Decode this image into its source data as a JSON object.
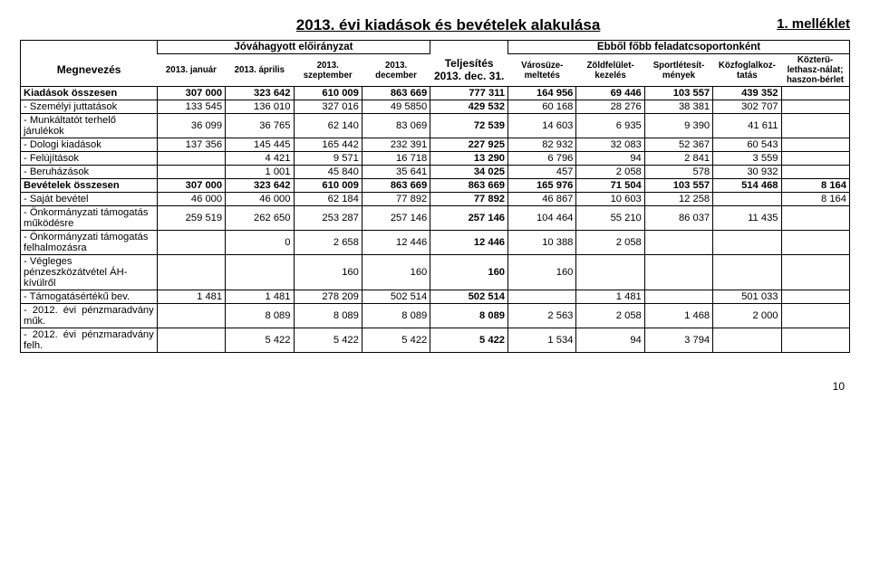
{
  "title": "2013. évi kiadások és bevételek alakulása",
  "appendix": "1. melléklet",
  "page_number": "10",
  "header": {
    "grp_approved": "Jóváhagyott előirányzat",
    "grp_tasks": "Ebből főbb feladatcsoportonként",
    "megnevezes": "Megnevezés",
    "jan": "2013. január",
    "apr": "2013. április",
    "sep": "2013. szeptember",
    "dec": "2013. december",
    "telj": "Teljesítés 2013. dec. 31.",
    "varos": "Városüze-meltetés",
    "zold": "Zöldfelület-kezelés",
    "sport": "Sportlétesít-mények",
    "kozfog": "Közfoglalkoz-tatás",
    "kozter": "Közterü-lethasz-nálat; haszon-bérlet"
  },
  "rows": [
    {
      "label": "Kiadások összesen",
      "bold": true,
      "vals": [
        "307 000",
        "323 642",
        "610 009",
        "863 669",
        "777 311",
        "164 956",
        "69 446",
        "103 557",
        "439 352",
        ""
      ]
    },
    {
      "label": " - Személyi juttatások",
      "vals": [
        "133 545",
        "136 010",
        "327 016",
        "49 5850",
        "429 532",
        "60 168",
        "28 276",
        "38 381",
        "302 707",
        ""
      ]
    },
    {
      "label": " - Munkáltatót terhelő járulékok",
      "vals": [
        "36 099",
        "36 765",
        "62 140",
        "83 069",
        "72 539",
        "14 603",
        "6 935",
        "9 390",
        "41 611",
        ""
      ]
    },
    {
      "label": " - Dologi kiadások",
      "vals": [
        "137 356",
        "145 445",
        "165 442",
        "232 391",
        "227 925",
        "82 932",
        "32 083",
        "52 367",
        "60 543",
        ""
      ]
    },
    {
      "label": " - Felújítások",
      "vals": [
        "",
        "4 421",
        "9 571",
        "16 718",
        "13 290",
        "6 796",
        "94",
        "2 841",
        "3 559",
        ""
      ]
    },
    {
      "label": " - Beruházások",
      "vals": [
        "",
        "1 001",
        "45 840",
        "35 641",
        "34 025",
        "457",
        "2 058",
        "578",
        "30 932",
        ""
      ]
    },
    {
      "label": "Bevételek összesen",
      "bold": true,
      "vals": [
        "307 000",
        "323 642",
        "610 009",
        "863 669",
        "863 669",
        "165 976",
        "71 504",
        "103 557",
        "514 468",
        "8 164"
      ]
    },
    {
      "label": " - Saját bevétel",
      "vals": [
        "46 000",
        "46 000",
        "62 184",
        "77 892",
        "77 892",
        "46 867",
        "10 603",
        "12 258",
        "",
        "8 164"
      ]
    },
    {
      "label": " - Önkormányzati támogatás működésre",
      "vals": [
        "259 519",
        "262 650",
        "253 287",
        "257 146",
        "257 146",
        "104 464",
        "55 210",
        "86 037",
        "11 435",
        ""
      ]
    },
    {
      "label": " - Önkormányzati támogatás felhalmozásra",
      "vals": [
        "",
        "0",
        "2 658",
        "12 446",
        "12 446",
        "10 388",
        "2 058",
        "",
        "",
        ""
      ]
    },
    {
      "label": " - Végleges pénzeszközátvétel ÁH- kívülről",
      "vals": [
        "",
        "",
        "160",
        "160",
        "160",
        "160",
        "",
        "",
        "",
        ""
      ]
    },
    {
      "label": " - Támogatásértékű bev.",
      "vals": [
        "1 481",
        "1 481",
        "278 209",
        "502 514",
        "502 514",
        "",
        "1 481",
        "",
        "501 033",
        ""
      ]
    },
    {
      "label": " - 2012. évi pénzmaradvány műk.",
      "justify": true,
      "vals": [
        "",
        "8 089",
        "8 089",
        "8 089",
        "8 089",
        "2 563",
        "2 058",
        "1 468",
        "2 000",
        ""
      ]
    },
    {
      "label": " - 2012. évi pénzmaradvány felh.",
      "justify": true,
      "vals": [
        "",
        "5 422",
        "5 422",
        "5 422",
        "5 422",
        "1 534",
        "94",
        "3 794",
        "",
        ""
      ]
    }
  ]
}
